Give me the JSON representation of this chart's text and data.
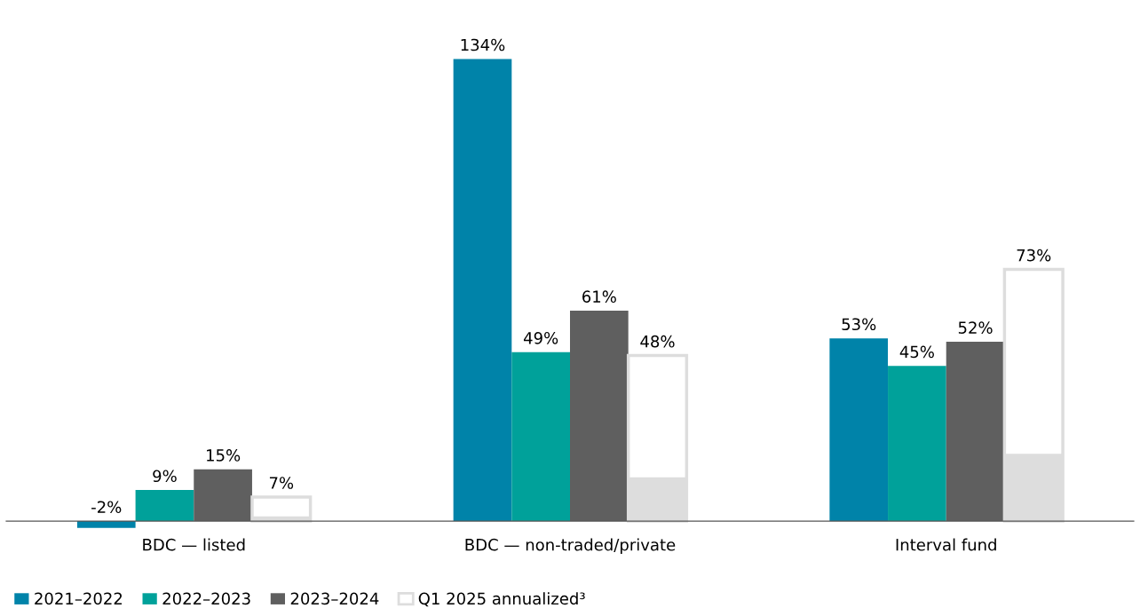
{
  "chart_data": {
    "type": "bar",
    "categories": [
      "BDC — listed",
      "BDC — non-traded/private",
      "Interval fund"
    ],
    "series": [
      {
        "name": "2021–2022",
        "color": "#0083a9",
        "values": [
          -2,
          134,
          53
        ],
        "value_labels": [
          "-2%",
          "134%",
          "53%"
        ]
      },
      {
        "name": "2022–2023",
        "color": "#00a19a",
        "values": [
          9,
          49,
          45
        ],
        "value_labels": [
          "9%",
          "49%",
          "45%"
        ]
      },
      {
        "name": "2023–2024",
        "color": "#5f5f5f",
        "values": [
          15,
          61,
          52
        ],
        "value_labels": [
          "15%",
          "61%",
          "52%"
        ]
      },
      {
        "name": "Q1 2025 annualized³",
        "color": "#dddddd",
        "values": [
          7,
          48,
          73
        ],
        "value_labels": [
          "7%",
          "48%",
          "73%"
        ]
      },
      {
        "color": "#dddddd",
        "values": [
          1.4,
          12.7,
          19.5
        ]
      }
    ],
    "legend": "bottom left"
  }
}
